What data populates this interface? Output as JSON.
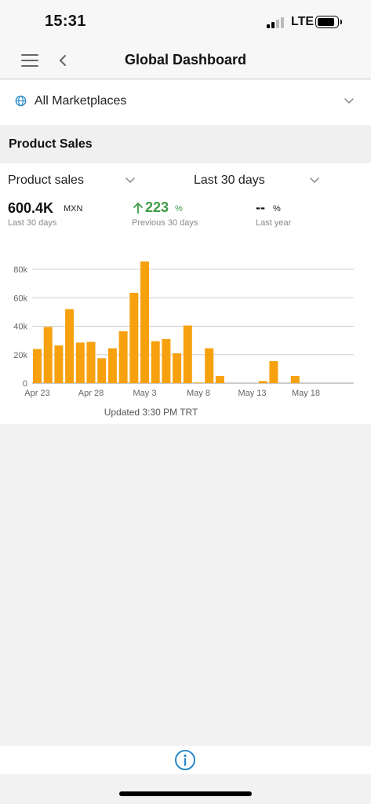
{
  "status": {
    "time": "15:31",
    "network": "LTE",
    "icons": [
      "signal-icon",
      "battery-icon"
    ]
  },
  "nav": {
    "title": "Global Dashboard",
    "icons": [
      "menu-icon",
      "back-chevron-icon"
    ]
  },
  "marketplace": {
    "label": "All Marketplaces",
    "icon": "globe-icon"
  },
  "section": {
    "title": "Product Sales"
  },
  "filters": {
    "metric": "Product sales",
    "period": "Last 30 days"
  },
  "kpis": {
    "current": {
      "value": "600.4K",
      "unit": "MXN",
      "label": "Last 30 days"
    },
    "previous": {
      "value": "223",
      "unit": "%",
      "label": "Previous 30 days",
      "direction": "up"
    },
    "last_year": {
      "value": "--",
      "unit": "%",
      "label": "Last year"
    }
  },
  "colors": {
    "bar": "#f7a10f",
    "up": "#3f9b47",
    "accent": "#2a8ac9"
  },
  "chart_data": {
    "type": "bar",
    "ylim": [
      0,
      80000
    ],
    "y_ticks": [
      "0",
      "20k",
      "40k",
      "60k",
      "80k"
    ],
    "x_tick_labels": [
      "Apr 23",
      "Apr 28",
      "May 3",
      "May 8",
      "May 13",
      "May 18"
    ],
    "categories": [
      "Apr 23",
      "Apr 24",
      "Apr 25",
      "Apr 26",
      "Apr 27",
      "Apr 28",
      "Apr 29",
      "Apr 30",
      "May 1",
      "May 2",
      "May 3",
      "May 4",
      "May 5",
      "May 6",
      "May 7",
      "May 8",
      "May 9",
      "May 10",
      "May 11",
      "May 12",
      "May 13",
      "May 14",
      "May 15",
      "May 16",
      "May 17",
      "May 18",
      "May 19",
      "May 20",
      "May 21",
      "May 22"
    ],
    "values": [
      24000,
      39500,
      26500,
      52000,
      28500,
      29000,
      17500,
      24500,
      36500,
      63500,
      85500,
      29500,
      31000,
      21000,
      40500,
      500,
      24500,
      5000,
      0,
      0,
      0,
      1500,
      15500,
      0,
      5000,
      0,
      0,
      0,
      0,
      0
    ]
  },
  "footer": {
    "updated": "Updated 3:30 PM TRT",
    "icon": "info-icon"
  }
}
